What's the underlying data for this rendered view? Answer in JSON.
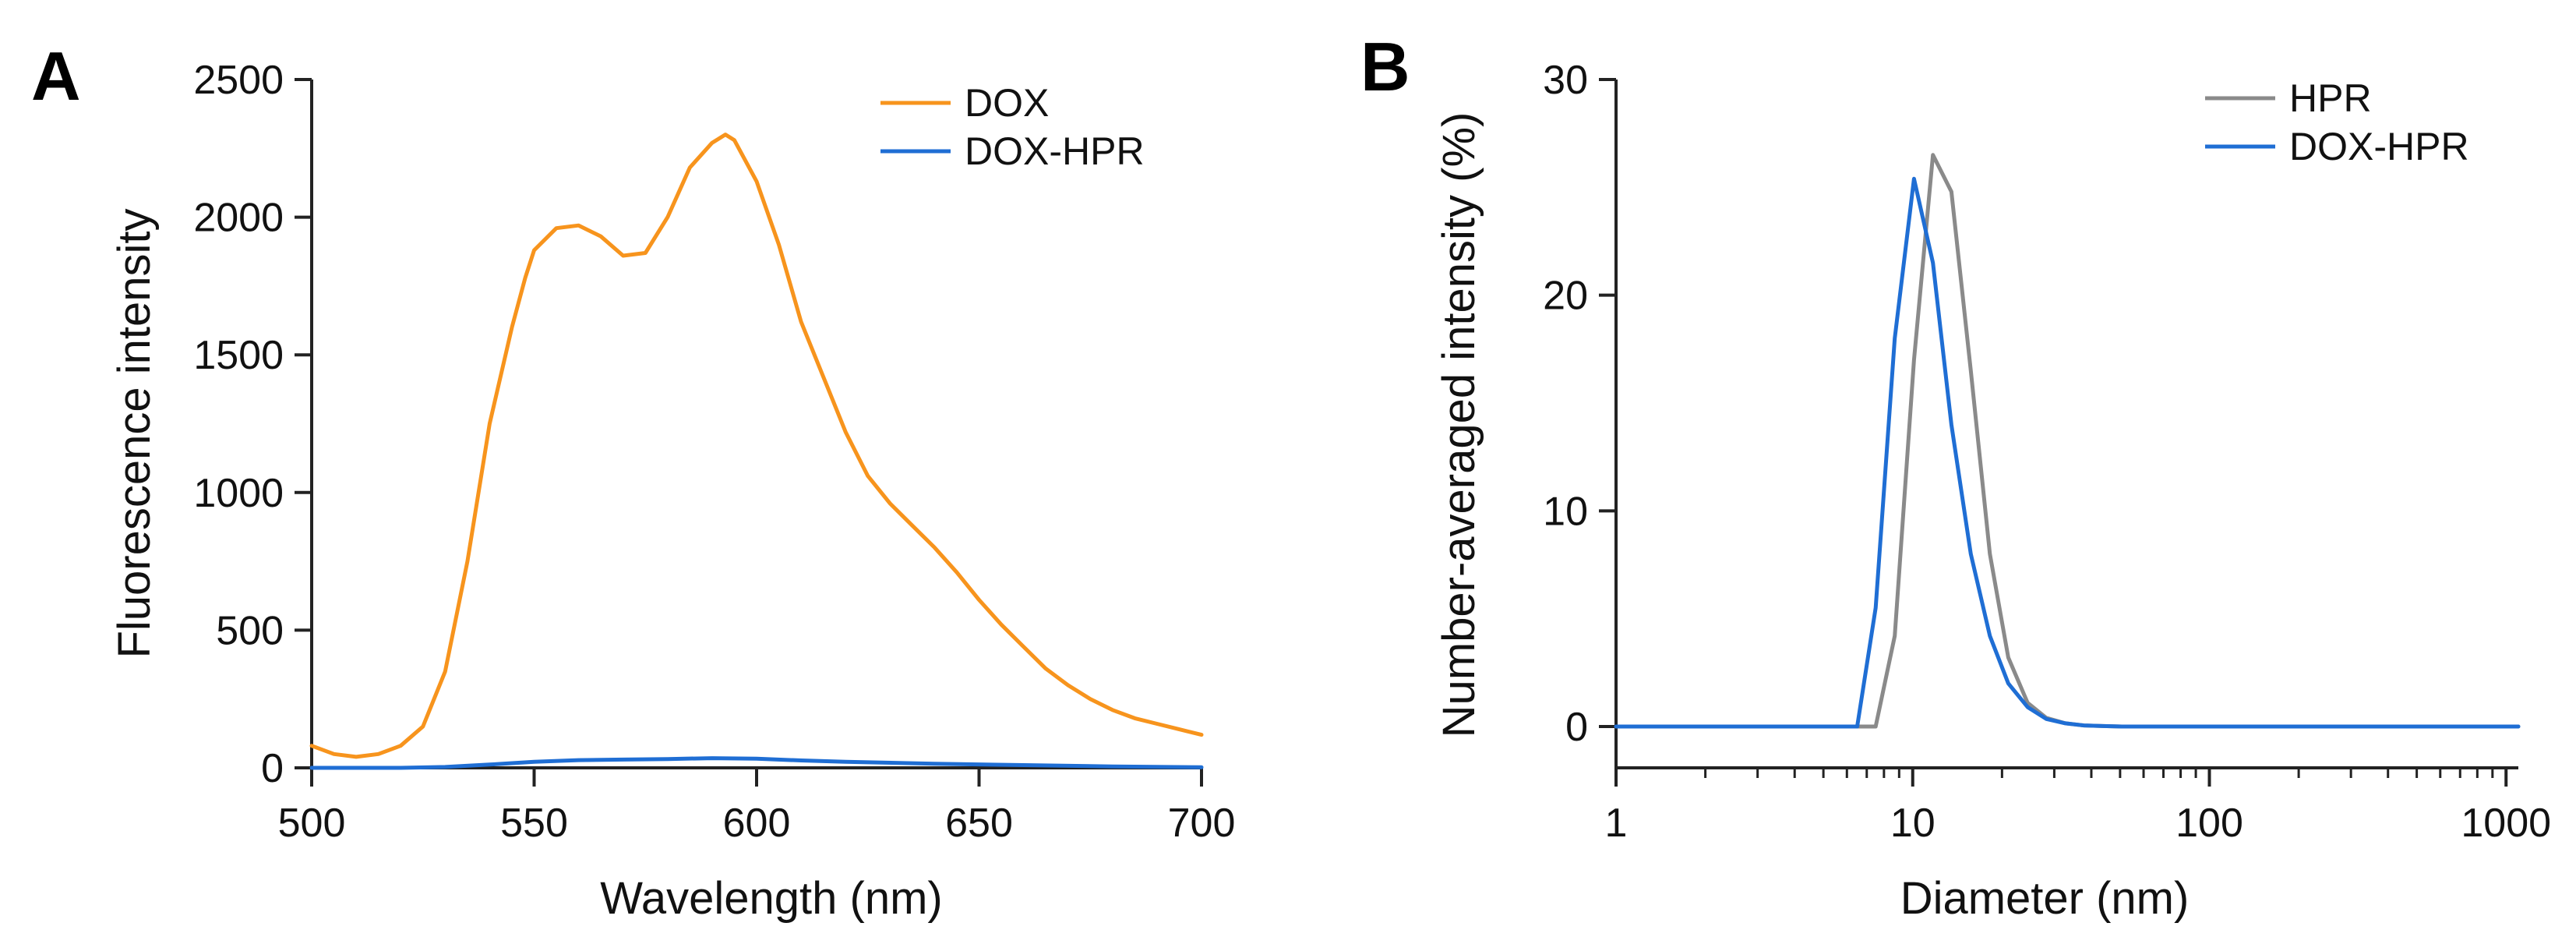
{
  "chart_data": [
    {
      "panel_label": "A",
      "type": "line",
      "title": "",
      "xlabel": "Wavelength (nm)",
      "ylabel": "Fluorescence intensity",
      "xlim": [
        500,
        700
      ],
      "ylim": [
        0,
        2500
      ],
      "x_ticks": [
        500,
        550,
        600,
        650,
        700
      ],
      "y_ticks": [
        0,
        500,
        1000,
        1500,
        2000,
        2500
      ],
      "x_scale": "linear",
      "legend": "top-right",
      "grid": false,
      "series": [
        {
          "name": "DOX",
          "color": "#f7941d",
          "x": [
            500,
            505,
            510,
            515,
            520,
            525,
            530,
            535,
            540,
            545,
            548,
            550,
            555,
            560,
            565,
            570,
            575,
            580,
            585,
            590,
            593,
            595,
            600,
            605,
            610,
            615,
            620,
            625,
            630,
            635,
            640,
            645,
            650,
            655,
            660,
            665,
            670,
            675,
            680,
            685,
            690,
            695,
            700
          ],
          "values": [
            80,
            50,
            40,
            50,
            80,
            150,
            350,
            750,
            1250,
            1600,
            1780,
            1880,
            1960,
            1970,
            1930,
            1860,
            1870,
            2000,
            2180,
            2270,
            2300,
            2280,
            2130,
            1900,
            1620,
            1420,
            1220,
            1060,
            960,
            880,
            800,
            710,
            610,
            520,
            440,
            360,
            300,
            250,
            210,
            180,
            160,
            140,
            120
          ]
        },
        {
          "name": "DOX-HPR",
          "color": "#1f6ed4",
          "x": [
            500,
            520,
            530,
            540,
            550,
            560,
            570,
            580,
            590,
            600,
            610,
            620,
            640,
            660,
            680,
            700
          ],
          "values": [
            0,
            0,
            3,
            12,
            22,
            28,
            30,
            32,
            35,
            33,
            27,
            22,
            15,
            10,
            5,
            2
          ]
        }
      ]
    },
    {
      "panel_label": "B",
      "type": "line",
      "title": "",
      "xlabel": "Diameter (nm)",
      "ylabel": "Number-averaged intensity (%)",
      "xlim": [
        1,
        1100
      ],
      "ylim": [
        -2,
        30
      ],
      "x_ticks": [
        1,
        10,
        100,
        1000
      ],
      "y_ticks": [
        0,
        10,
        20,
        30
      ],
      "x_scale": "log",
      "legend": "top-right",
      "grid": false,
      "series": [
        {
          "name": "HPR",
          "color": "#8a8a8a",
          "x": [
            1,
            7.5,
            8.7,
            10.1,
            11.7,
            13.5,
            15.7,
            18.2,
            21.0,
            24.4,
            28.2,
            32.7,
            37.8,
            43.8,
            50.7,
            60,
            80,
            100,
            1100
          ],
          "values": [
            0,
            0,
            4.2,
            17.0,
            26.5,
            24.8,
            16.5,
            8.0,
            3.2,
            1.1,
            0.4,
            0.15,
            0.05,
            0.02,
            0,
            0,
            0,
            0,
            0
          ]
        },
        {
          "name": "DOX-HPR",
          "color": "#1f6ed4",
          "x": [
            1,
            6.5,
            7.5,
            8.7,
            10.1,
            11.7,
            13.5,
            15.7,
            18.2,
            21.0,
            24.4,
            28.2,
            32.7,
            37.8,
            43.8,
            50.7,
            60,
            80,
            100,
            1100
          ],
          "values": [
            0,
            0,
            5.5,
            18.0,
            25.4,
            21.5,
            14.0,
            8.0,
            4.2,
            2.0,
            0.9,
            0.35,
            0.15,
            0.05,
            0.02,
            0,
            0,
            0,
            0,
            0
          ]
        }
      ]
    }
  ]
}
